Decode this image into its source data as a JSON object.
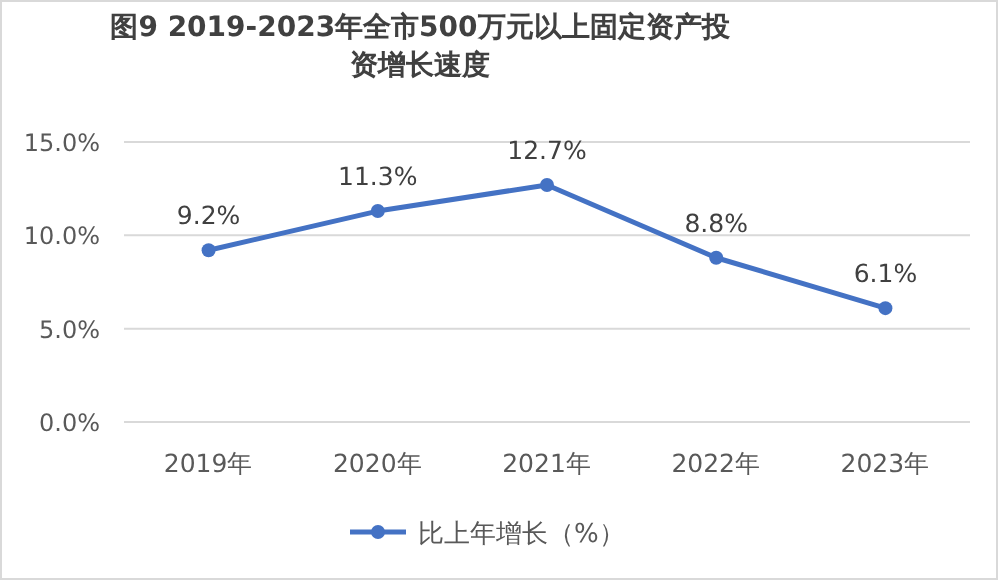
{
  "chart_data": {
    "type": "line",
    "title": "图9 2019-2023年全市500万元以上固定资产投资增长速度",
    "categories": [
      "2019年",
      "2020年",
      "2021年",
      "2022年",
      "2023年"
    ],
    "series": [
      {
        "name": "比上年增长（%）",
        "color": "#4472c4",
        "values": [
          9.2,
          11.3,
          12.7,
          8.8,
          6.1
        ],
        "value_labels": [
          "9.2%",
          "11.3%",
          "12.7%",
          "8.8%",
          "6.1%"
        ]
      }
    ],
    "ylim": [
      0,
      15
    ],
    "yticks": [
      {
        "value": 0,
        "label": "0.0%"
      },
      {
        "value": 5,
        "label": "5.0%"
      },
      {
        "value": 10,
        "label": "10.0%"
      },
      {
        "value": 15,
        "label": "15.0%"
      }
    ],
    "grid": "y",
    "legend": "bottom",
    "marker": "circle",
    "line_style": "solid"
  }
}
